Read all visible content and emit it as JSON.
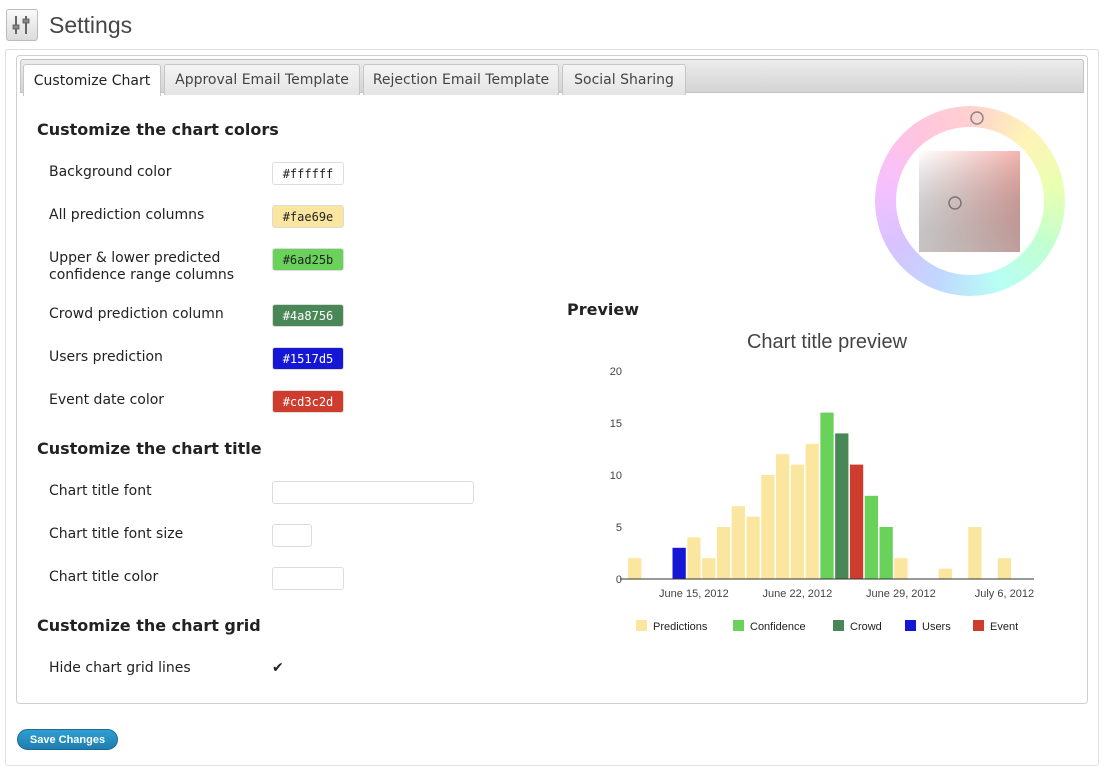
{
  "page": {
    "title": "Settings"
  },
  "tabs": [
    {
      "label": "Customize Chart",
      "active": true
    },
    {
      "label": "Approval Email Template",
      "active": false
    },
    {
      "label": "Rejection Email Template",
      "active": false
    },
    {
      "label": "Social Sharing",
      "active": false
    }
  ],
  "colors_section": {
    "heading": "Customize the chart colors",
    "fields": [
      {
        "label": "Background color",
        "value": "#ffffff",
        "text_color": "#222222"
      },
      {
        "label": "All prediction columns",
        "value": "#fae69e",
        "text_color": "#222222"
      },
      {
        "label_lines": [
          "Upper & lower predicted",
          "confidence range columns"
        ],
        "value": "#6ad25b",
        "text_color": "#222222"
      },
      {
        "label": "Crowd prediction column",
        "value": "#4a8756",
        "text_color": "#ffffff"
      },
      {
        "label": "Users prediction",
        "value": "#1517d5",
        "text_color": "#ffffff"
      },
      {
        "label": "Event date color",
        "value": "#cd3c2d",
        "text_color": "#ffffff"
      }
    ]
  },
  "title_section": {
    "heading": "Customize the chart title",
    "fields": [
      {
        "label": "Chart title font",
        "value": ""
      },
      {
        "label": "Chart title font size",
        "value": ""
      },
      {
        "label": "Chart title color",
        "value": ""
      }
    ]
  },
  "grid_section": {
    "heading": "Customize the chart grid",
    "hide_label": "Hide chart grid lines",
    "hide_checked": true
  },
  "preview": {
    "heading": "Preview"
  },
  "save_button": {
    "label": "Save Changes"
  },
  "colors": {
    "predictions": "#fae69e",
    "confidence": "#6ad25b",
    "crowd": "#4a8756",
    "users": "#1517d5",
    "event": "#cd3c2d"
  },
  "chart_data": {
    "type": "bar",
    "title": "Chart title preview",
    "xlabel": "",
    "ylabel": "",
    "ylim": [
      0,
      20
    ],
    "yticks": [
      0,
      5,
      10,
      15,
      20
    ],
    "grid": false,
    "legend_position": "bottom",
    "x_ticks": [
      {
        "label": "June 15, 2012",
        "at": "2012-06-15"
      },
      {
        "label": "June 22, 2012",
        "at": "2012-06-22"
      },
      {
        "label": "June 29, 2012",
        "at": "2012-06-29"
      },
      {
        "label": "July 6, 2012",
        "at": "2012-07-06"
      }
    ],
    "legend": [
      {
        "name": "Predictions",
        "color": "#fae69e"
      },
      {
        "name": "Confidence",
        "color": "#6ad25b"
      },
      {
        "name": "Crowd",
        "color": "#4a8756"
      },
      {
        "name": "Users",
        "color": "#1517d5"
      },
      {
        "name": "Event",
        "color": "#cd3c2d"
      }
    ],
    "bars": [
      {
        "date": "2012-06-11",
        "value": 2,
        "series": "Predictions"
      },
      {
        "date": "2012-06-14",
        "value": 3,
        "series": "Users"
      },
      {
        "date": "2012-06-15",
        "value": 4,
        "series": "Predictions"
      },
      {
        "date": "2012-06-16",
        "value": 2,
        "series": "Predictions"
      },
      {
        "date": "2012-06-17",
        "value": 5,
        "series": "Predictions"
      },
      {
        "date": "2012-06-18",
        "value": 7,
        "series": "Predictions"
      },
      {
        "date": "2012-06-19",
        "value": 6,
        "series": "Predictions"
      },
      {
        "date": "2012-06-20",
        "value": 10,
        "series": "Predictions"
      },
      {
        "date": "2012-06-21",
        "value": 12,
        "series": "Predictions"
      },
      {
        "date": "2012-06-22",
        "value": 11,
        "series": "Predictions"
      },
      {
        "date": "2012-06-23",
        "value": 13,
        "series": "Predictions"
      },
      {
        "date": "2012-06-24",
        "value": 16,
        "series": "Confidence"
      },
      {
        "date": "2012-06-25",
        "value": 14,
        "series": "Crowd"
      },
      {
        "date": "2012-06-26",
        "value": 11,
        "series": "Event"
      },
      {
        "date": "2012-06-27",
        "value": 8,
        "series": "Confidence"
      },
      {
        "date": "2012-06-28",
        "value": 5,
        "series": "Confidence"
      },
      {
        "date": "2012-06-29",
        "value": 2,
        "series": "Predictions"
      },
      {
        "date": "2012-07-02",
        "value": 1,
        "series": "Predictions"
      },
      {
        "date": "2012-07-04",
        "value": 5,
        "series": "Predictions"
      },
      {
        "date": "2012-07-06",
        "value": 2,
        "series": "Predictions"
      }
    ]
  }
}
